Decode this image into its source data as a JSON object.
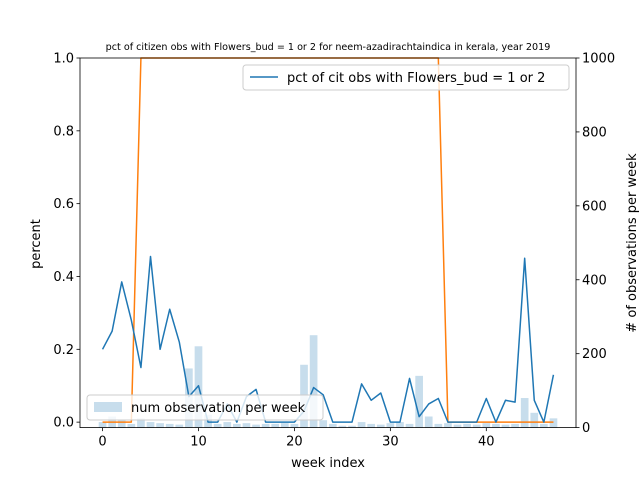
{
  "chart_data": {
    "type": "line",
    "title": "pct of citizen obs with Flowers_bud = 1 or 2 for neem-azadirachtaindica in kerala, year 2019",
    "xlabel": "week index",
    "ylabel": "percent",
    "y2label": "# of observations per week",
    "xlim": [
      -2.35,
      49.35
    ],
    "ylim": [
      -0.015,
      1.0
    ],
    "y2lim": [
      0,
      1000
    ],
    "x_ticks": [
      "0",
      "10",
      "20",
      "30",
      "40"
    ],
    "y_ticks": [
      "0.0",
      "0.2",
      "0.4",
      "0.6",
      "0.8",
      "1.0"
    ],
    "y2_ticks": [
      "0",
      "200",
      "400",
      "600",
      "800",
      "1000"
    ],
    "grid": false,
    "weeks": [
      0,
      1,
      2,
      3,
      4,
      5,
      6,
      7,
      8,
      9,
      10,
      11,
      12,
      13,
      14,
      15,
      16,
      17,
      18,
      19,
      20,
      21,
      22,
      23,
      24,
      25,
      26,
      27,
      28,
      29,
      30,
      31,
      32,
      33,
      34,
      35,
      36,
      37,
      38,
      39,
      40,
      41,
      42,
      43,
      44,
      45,
      46,
      47
    ],
    "series": [
      {
        "name": "pct of cit obs with Flowers_bud = 1 or 2",
        "color": "#1f77b4",
        "axis": "left",
        "values": [
          0.2,
          0.25,
          0.385,
          0.28,
          0.15,
          0.455,
          0.2,
          0.31,
          0.22,
          0.07,
          0.1,
          0.0,
          0.0,
          0.05,
          0.0,
          0.07,
          0.09,
          0.0,
          0.0,
          0.0,
          0.0,
          0.03,
          0.095,
          0.075,
          0.0,
          0.0,
          0.0,
          0.105,
          0.06,
          0.08,
          0.0,
          0.0,
          0.12,
          0.015,
          0.05,
          0.065,
          0.0,
          0.0,
          0.0,
          0.0,
          0.065,
          0.0,
          0.06,
          0.055,
          0.45,
          0.06,
          0.0,
          0.13
        ]
      },
      {
        "color": "#ff7f0e",
        "axis": "left",
        "values": [
          0,
          0,
          0,
          0,
          1,
          1,
          1,
          1,
          1,
          1,
          1,
          1,
          1,
          1,
          1,
          1,
          1,
          1,
          1,
          1,
          1,
          1,
          1,
          1,
          1,
          1,
          1,
          1,
          1,
          1,
          1,
          1,
          1,
          1,
          1,
          1,
          0,
          0,
          0,
          0,
          0,
          0,
          0,
          0,
          0,
          0,
          0,
          0
        ]
      },
      {
        "name": "num observation per week",
        "type": "bar",
        "color": "#1f77b4",
        "alpha": 0.25,
        "axis": "right",
        "values": [
          15,
          30,
          20,
          10,
          25,
          15,
          12,
          10,
          8,
          160,
          220,
          35,
          10,
          15,
          10,
          12,
          8,
          10,
          10,
          12,
          10,
          170,
          250,
          20,
          10,
          5,
          5,
          15,
          10,
          8,
          12,
          15,
          10,
          140,
          30,
          10,
          12,
          8,
          10,
          8,
          12,
          10,
          8,
          10,
          80,
          40,
          10,
          25
        ]
      }
    ],
    "legend_upper": {
      "position": "top-right",
      "label": "pct of cit obs with Flowers_bud = 1 or 2"
    },
    "legend_lower": {
      "position": "bottom-left",
      "label": "num observation per week"
    }
  }
}
